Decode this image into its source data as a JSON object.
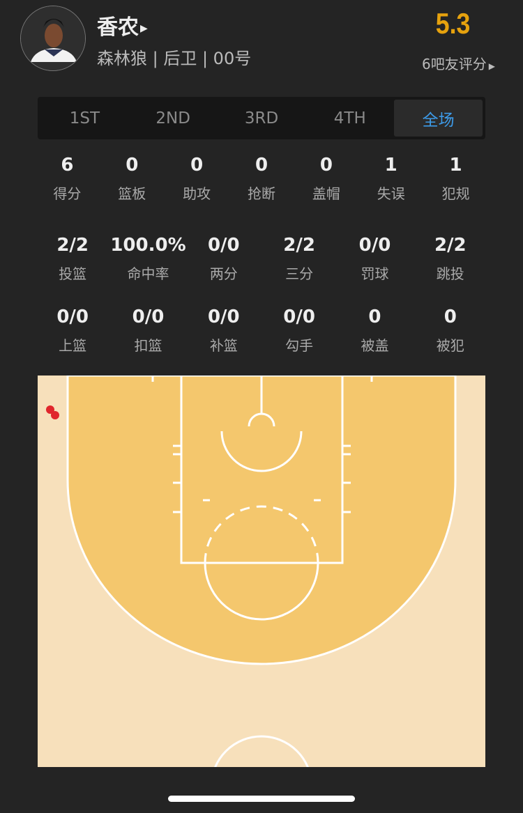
{
  "player": {
    "name": "香农",
    "info": "森林狼 | 后卫 | 00号",
    "rating": "5.3",
    "rating_label": "6吧友评分"
  },
  "tabs": [
    {
      "label": "1ST"
    },
    {
      "label": "2ND"
    },
    {
      "label": "3RD"
    },
    {
      "label": "4TH"
    },
    {
      "label": "全场",
      "active": true
    }
  ],
  "stats_main": [
    {
      "value": "6",
      "label": "得分"
    },
    {
      "value": "0",
      "label": "篮板"
    },
    {
      "value": "0",
      "label": "助攻"
    },
    {
      "value": "0",
      "label": "抢断"
    },
    {
      "value": "0",
      "label": "盖帽"
    },
    {
      "value": "1",
      "label": "失误"
    },
    {
      "value": "1",
      "label": "犯规"
    }
  ],
  "stats_shooting": [
    {
      "value": "2/2",
      "label": "投篮"
    },
    {
      "value": "100.0%",
      "label": "命中率"
    },
    {
      "value": "0/0",
      "label": "两分"
    },
    {
      "value": "2/2",
      "label": "三分"
    },
    {
      "value": "0/0",
      "label": "罚球"
    },
    {
      "value": "2/2",
      "label": "跳投"
    }
  ],
  "stats_types": [
    {
      "value": "0/0",
      "label": "上篮"
    },
    {
      "value": "0/0",
      "label": "扣篮"
    },
    {
      "value": "0/0",
      "label": "补篮"
    },
    {
      "value": "0/0",
      "label": "勾手"
    },
    {
      "value": "0",
      "label": "被盖"
    },
    {
      "value": "0",
      "label": "被犯"
    }
  ],
  "colors": {
    "accent": "#3d9be8",
    "rating": "#e6a20e",
    "court_outer": "#f7e0bb",
    "court_inner": "#f4c76d",
    "shot_made": "#e0262c"
  },
  "shot_chart": {
    "shots": [
      {
        "result": "made",
        "type": "三分"
      },
      {
        "result": "made",
        "type": "三分"
      }
    ]
  }
}
